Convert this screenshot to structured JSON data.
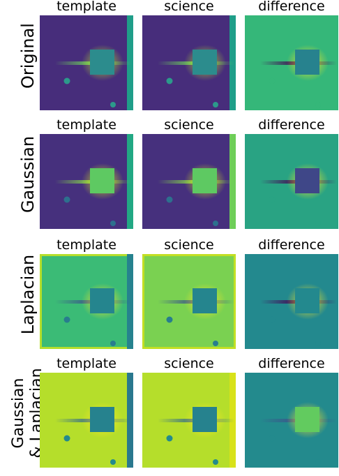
{
  "columns": [
    "template",
    "science",
    "difference"
  ],
  "rows": [
    {
      "label": "Original",
      "panels": [
        {
          "bg": "#472d7b",
          "blob": "#2c8c8d",
          "glow": "#b8de29",
          "streak": "#6ccd5a",
          "stars": "#2c9a8b",
          "edge": "#1f9e89",
          "frame": ""
        },
        {
          "bg": "#472d7b",
          "blob": "#2c8c8d",
          "glow": "#b8de29",
          "streak": "#6ccd5a",
          "stars": "#2c9a8b",
          "edge": "#1f9e89",
          "frame": ""
        },
        {
          "bg": "#35b779",
          "blob": "#27828e",
          "glow": "#fde725",
          "streak": "#440154",
          "stars": "#35b779",
          "edge": "",
          "frame": ""
        }
      ]
    },
    {
      "label": "Gaussian",
      "panels": [
        {
          "bg": "#46307d",
          "blob": "#5ec962",
          "glow": "#d8e219",
          "streak": "#86d549",
          "stars": "#2d708e",
          "edge": "#22a884",
          "frame": ""
        },
        {
          "bg": "#46307d",
          "blob": "#5ec962",
          "glow": "#d8e219",
          "streak": "#86d549",
          "stars": "#2d708e",
          "edge": "#6ece58",
          "frame": ""
        },
        {
          "bg": "#29a383",
          "blob": "#3f4788",
          "glow": "#fde725",
          "streak": "#440154",
          "stars": "#29a383",
          "edge": "",
          "frame": ""
        }
      ]
    },
    {
      "label": "Laplacian",
      "panels": [
        {
          "bg": "#3bbb76",
          "blob": "#25858e",
          "glow": "#fde725",
          "streak": "#3b528b",
          "stars": "#287d8e",
          "edge": "#26828e",
          "frame": "#b5de2b"
        },
        {
          "bg": "#7ad151",
          "blob": "#25858e",
          "glow": "#fde725",
          "streak": "#3b528b",
          "stars": "#287d8e",
          "edge": "",
          "frame": "#c2df23"
        },
        {
          "bg": "#23898e",
          "blob": "#23898e",
          "glow": "#fde725",
          "streak": "#440154",
          "stars": "#23898e",
          "edge": "",
          "frame": ""
        }
      ]
    },
    {
      "label": "Gaussian\n& Laplacian",
      "panels": [
        {
          "bg": "#b5de2b",
          "blob": "#26828e",
          "glow": "#fde725",
          "streak": "#31688e",
          "stars": "#238a8d",
          "edge": "#2a788e",
          "frame": ""
        },
        {
          "bg": "#b5de2b",
          "blob": "#26828e",
          "glow": "#fde725",
          "streak": "#31688e",
          "stars": "#238a8d",
          "edge": "#d8e219",
          "frame": ""
        },
        {
          "bg": "#238a8d",
          "blob": "#62cb5f",
          "glow": "#fde725",
          "streak": "#3b528b",
          "stars": "#238a8d",
          "edge": "",
          "frame": ""
        }
      ]
    }
  ]
}
